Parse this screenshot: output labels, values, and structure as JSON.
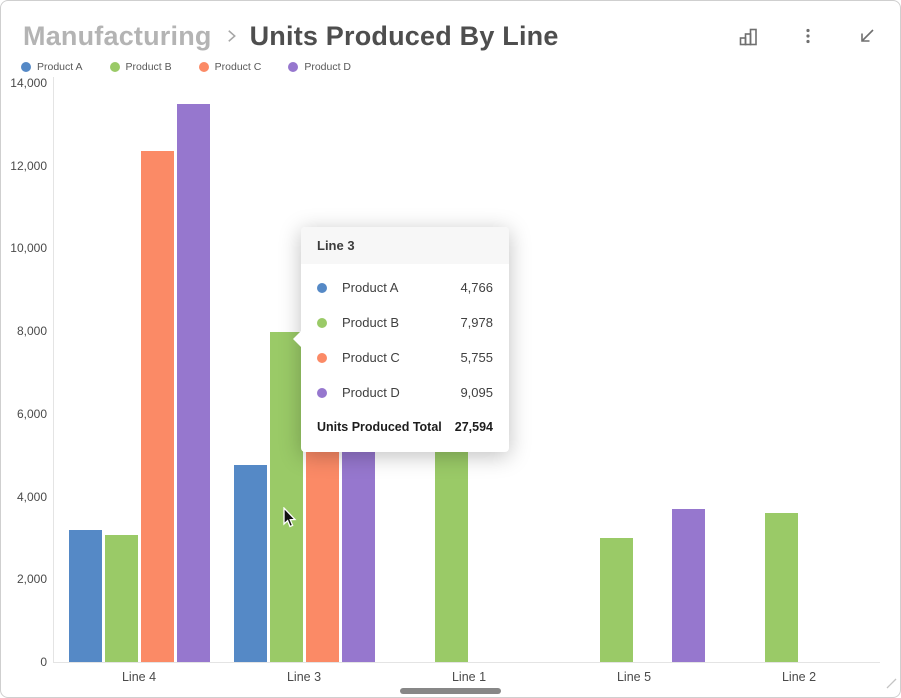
{
  "header": {
    "breadcrumb": "Manufacturing",
    "title": "Units Produced By Line",
    "icons": [
      "bar-chart-icon",
      "kebab-menu-icon",
      "arrow-down-left-icon"
    ]
  },
  "chart_data": {
    "type": "bar",
    "title": "Units Produced By Line",
    "categories": [
      "Line 4",
      "Line 3",
      "Line 1",
      "Line 5",
      "Line 2"
    ],
    "series": [
      {
        "name": "Product A",
        "color": "#5589c6",
        "values": [
          3200,
          4766,
          null,
          null,
          null
        ]
      },
      {
        "name": "Product B",
        "color": "#9aca67",
        "values": [
          3070,
          7978,
          5270,
          3000,
          3600
        ]
      },
      {
        "name": "Product C",
        "color": "#fb8a66",
        "values": [
          12350,
          5755,
          null,
          null,
          null
        ]
      },
      {
        "name": "Product D",
        "color": "#9677ce",
        "values": [
          13500,
          9095,
          null,
          3700,
          null
        ]
      }
    ],
    "ylabel": "",
    "xlabel": "",
    "ylim": [
      0,
      14000
    ],
    "yticks": [
      0,
      2000,
      4000,
      6000,
      8000,
      10000,
      12000,
      14000
    ],
    "grid": false,
    "legend_position": "top-left"
  },
  "tooltip": {
    "title": "Line 3",
    "rows": [
      {
        "label": "Product A",
        "value": "4,766",
        "color": "#5589c6"
      },
      {
        "label": "Product B",
        "value": "7,978",
        "color": "#9aca67"
      },
      {
        "label": "Product C",
        "value": "5,755",
        "color": "#fb8a66"
      },
      {
        "label": "Product D",
        "value": "9,095",
        "color": "#9677ce"
      }
    ],
    "total_label": "Units Produced Total",
    "total_value": "27,594"
  }
}
